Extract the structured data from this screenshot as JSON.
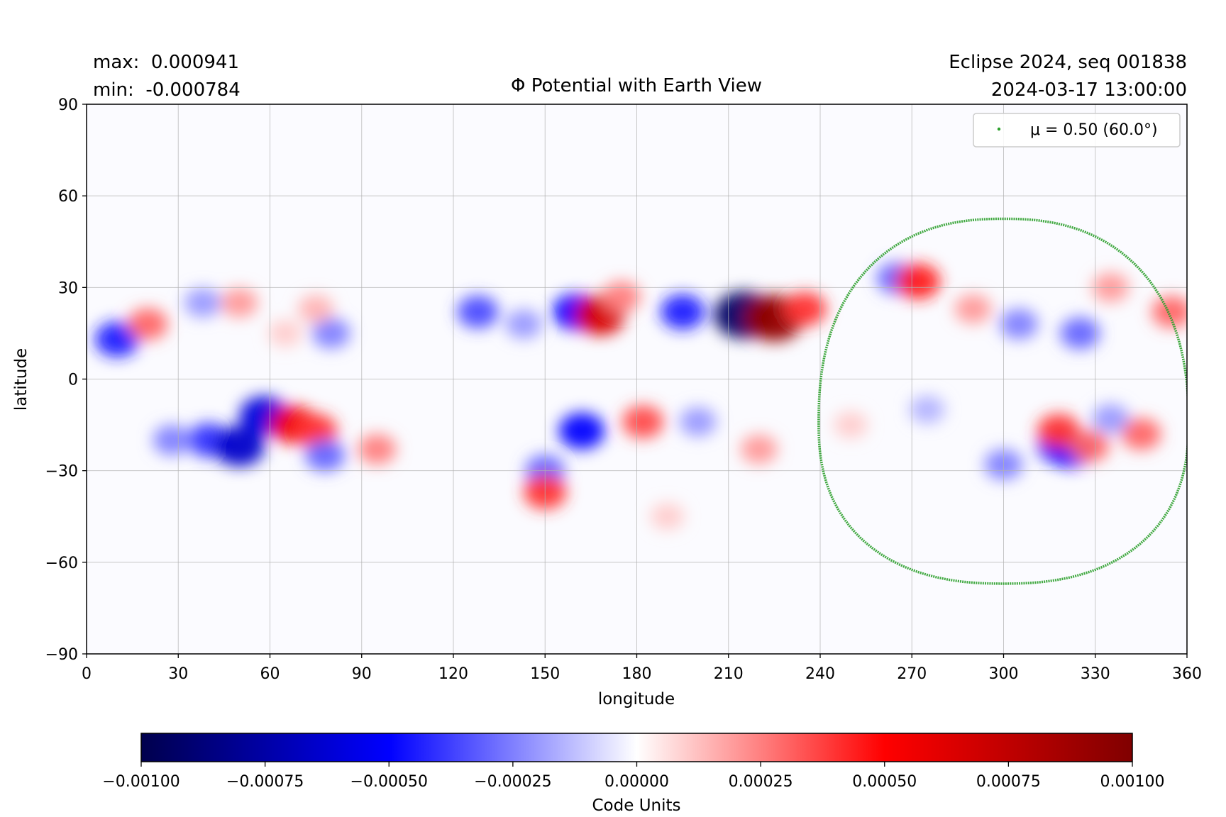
{
  "chart_data": {
    "type": "heatmap",
    "title": "Φ Potential with Earth View",
    "info_left": {
      "max_line": "max:  0.000941",
      "min_line": "min:  -0.000784"
    },
    "info_right": {
      "line1": "Eclipse 2024, seq 001838",
      "line2": "2024-03-17 13:00:00"
    },
    "xlabel": "longitude",
    "ylabel": "latitude",
    "xlim": [
      0,
      360
    ],
    "ylim": [
      -90,
      90
    ],
    "xticks": [
      0,
      30,
      60,
      90,
      120,
      150,
      180,
      210,
      240,
      270,
      300,
      330,
      360
    ],
    "yticks": [
      90,
      60,
      30,
      0,
      -30,
      -60,
      -90
    ],
    "ytick_labels": [
      "90",
      "60",
      "30",
      "0",
      "−30",
      "−60",
      "−90"
    ],
    "grid": true,
    "colormap": {
      "name": "seismic",
      "stops": [
        "#00004d",
        "#0000ff",
        "#ffffff",
        "#ff0000",
        "#800000"
      ],
      "range": [
        -0.001,
        0.001
      ]
    },
    "colorbar": {
      "label": "Code Units",
      "ticks": [
        -0.001,
        -0.00075,
        -0.0005,
        -0.00025,
        0,
        0.00025,
        0.0005,
        0.00075,
        0.001
      ],
      "tick_labels": [
        "−0.00100",
        "−0.00075",
        "−0.00050",
        "−0.00025",
        "0.00000",
        "0.00025",
        "0.00050",
        "0.00075",
        "0.00100"
      ]
    },
    "legend": {
      "placement": "top-right",
      "label": "μ = 0.50 (60.0°)",
      "color": "#2ca02c"
    },
    "contour": {
      "name": "μ = 0.50 (60.0°)",
      "color": "#2ca02c",
      "center_lon": 300,
      "center_lat": -14.5,
      "half_width_lon": 60.5,
      "north_lat": 52.5,
      "south_lat": -67
    },
    "blobs": [
      {
        "lon": 10,
        "lat": 13,
        "v": -0.00045
      },
      {
        "lon": 20,
        "lat": 18,
        "v": 0.0003
      },
      {
        "lon": 38,
        "lat": 25,
        "v": -0.0002
      },
      {
        "lon": 50,
        "lat": 25,
        "v": 0.0002
      },
      {
        "lon": 80,
        "lat": 15,
        "v": -0.00025
      },
      {
        "lon": 75,
        "lat": 23,
        "v": 0.00015
      },
      {
        "lon": 65,
        "lat": 15,
        "v": 0.0001
      },
      {
        "lon": 128,
        "lat": 22,
        "v": -0.00035
      },
      {
        "lon": 143,
        "lat": 18,
        "v": -0.0002
      },
      {
        "lon": 160,
        "lat": 22,
        "v": -0.0005
      },
      {
        "lon": 168,
        "lat": 21,
        "v": 0.00065
      },
      {
        "lon": 175,
        "lat": 27,
        "v": 0.00025
      },
      {
        "lon": 195,
        "lat": 22,
        "v": -0.00045
      },
      {
        "lon": 215,
        "lat": 21,
        "v": -0.00094
      },
      {
        "lon": 225,
        "lat": 20,
        "v": 0.00092
      },
      {
        "lon": 235,
        "lat": 23,
        "v": 0.0004
      },
      {
        "lon": 265,
        "lat": 33,
        "v": -0.0003
      },
      {
        "lon": 272,
        "lat": 32,
        "v": 0.00045
      },
      {
        "lon": 305,
        "lat": 18,
        "v": -0.00025
      },
      {
        "lon": 325,
        "lat": 15,
        "v": -0.0003
      },
      {
        "lon": 335,
        "lat": 30,
        "v": 0.0002
      },
      {
        "lon": 355,
        "lat": 22,
        "v": 0.0003
      },
      {
        "lon": 290,
        "lat": 23,
        "v": 0.0002
      },
      {
        "lon": 40,
        "lat": -20,
        "v": -0.0004
      },
      {
        "lon": 50,
        "lat": -22,
        "v": -0.00065
      },
      {
        "lon": 58,
        "lat": -12,
        "v": -0.0006
      },
      {
        "lon": 68,
        "lat": -15,
        "v": 0.00055
      },
      {
        "lon": 75,
        "lat": -17,
        "v": 0.0004
      },
      {
        "lon": 78,
        "lat": -25,
        "v": -0.0003
      },
      {
        "lon": 95,
        "lat": -23,
        "v": 0.00025
      },
      {
        "lon": 28,
        "lat": -20,
        "v": -0.00025
      },
      {
        "lon": 162,
        "lat": -17,
        "v": -0.0005
      },
      {
        "lon": 150,
        "lat": -30,
        "v": -0.0003
      },
      {
        "lon": 150,
        "lat": -37,
        "v": 0.0004
      },
      {
        "lon": 182,
        "lat": -14,
        "v": 0.00035
      },
      {
        "lon": 200,
        "lat": -14,
        "v": -0.0002
      },
      {
        "lon": 220,
        "lat": -23,
        "v": 0.0002
      },
      {
        "lon": 190,
        "lat": -45,
        "v": 0.0001
      },
      {
        "lon": 318,
        "lat": -22,
        "v": -0.0004
      },
      {
        "lon": 322,
        "lat": -23,
        "v": -0.0005
      },
      {
        "lon": 318,
        "lat": -17,
        "v": 0.0004
      },
      {
        "lon": 328,
        "lat": -22,
        "v": 0.0003
      },
      {
        "lon": 345,
        "lat": -18,
        "v": 0.0003
      },
      {
        "lon": 300,
        "lat": -28,
        "v": -0.00025
      },
      {
        "lon": 335,
        "lat": -13,
        "v": -0.0002
      },
      {
        "lon": 275,
        "lat": -10,
        "v": -0.00015
      },
      {
        "lon": 250,
        "lat": -15,
        "v": 0.0001
      }
    ]
  }
}
